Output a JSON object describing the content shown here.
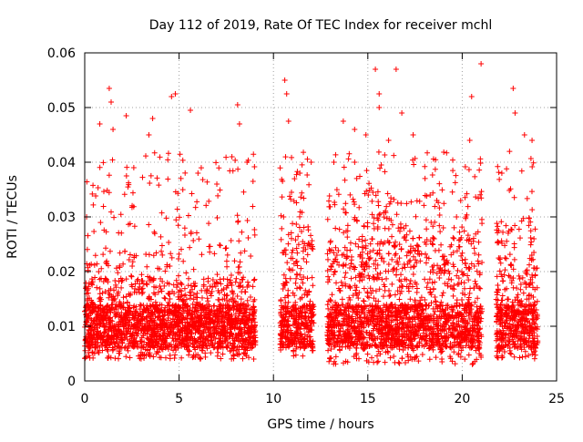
{
  "chart_data": {
    "type": "scatter",
    "title": "Day 112 of 2019, Rate Of TEC Index for receiver mchl",
    "xlabel": "GPS time / hours",
    "ylabel": "ROTI / TECUs",
    "xlim": [
      0,
      25
    ],
    "ylim": [
      0,
      0.06
    ],
    "xticks": [
      0,
      5,
      10,
      15,
      20,
      25
    ],
    "xtick_labels": [
      "0",
      "5",
      "10",
      "15",
      "20",
      "25"
    ],
    "yticks": [
      0,
      0.01,
      0.02,
      0.03,
      0.04,
      0.05,
      0.06
    ],
    "ytick_labels": [
      "0",
      "0.01",
      "0.02",
      "0.03",
      "0.04",
      "0.05",
      "0.06"
    ],
    "grid": true,
    "marker": "+",
    "color": "#ff0000",
    "series": [
      {
        "name": "ROTI",
        "segments": [
          {
            "x_start": 0.0,
            "x_end": 9.05,
            "typical_min": 0.004,
            "typical_max": 0.025
          },
          {
            "x_start": 10.35,
            "x_end": 12.15,
            "typical_min": 0.004,
            "typical_max": 0.035
          },
          {
            "x_start": 12.85,
            "x_end": 21.05,
            "typical_min": 0.003,
            "typical_max": 0.035
          },
          {
            "x_start": 21.8,
            "x_end": 24.0,
            "typical_min": 0.004,
            "typical_max": 0.03
          }
        ],
        "peaks": [
          {
            "x": 0.1,
            "y": 0.03
          },
          {
            "x": 0.8,
            "y": 0.047
          },
          {
            "x": 1.3,
            "y": 0.0535
          },
          {
            "x": 1.4,
            "y": 0.051
          },
          {
            "x": 1.5,
            "y": 0.046
          },
          {
            "x": 2.2,
            "y": 0.0485
          },
          {
            "x": 2.6,
            "y": 0.039
          },
          {
            "x": 3.4,
            "y": 0.045
          },
          {
            "x": 3.6,
            "y": 0.048
          },
          {
            "x": 4.6,
            "y": 0.052
          },
          {
            "x": 4.8,
            "y": 0.0525
          },
          {
            "x": 5.6,
            "y": 0.0495
          },
          {
            "x": 6.0,
            "y": 0.038
          },
          {
            "x": 7.0,
            "y": 0.036
          },
          {
            "x": 7.8,
            "y": 0.041
          },
          {
            "x": 8.1,
            "y": 0.0505
          },
          {
            "x": 8.2,
            "y": 0.047
          },
          {
            "x": 8.6,
            "y": 0.04
          },
          {
            "x": 10.6,
            "y": 0.055
          },
          {
            "x": 10.7,
            "y": 0.0525
          },
          {
            "x": 10.8,
            "y": 0.0475
          },
          {
            "x": 11.4,
            "y": 0.038
          },
          {
            "x": 12.0,
            "y": 0.04
          },
          {
            "x": 13.2,
            "y": 0.04
          },
          {
            "x": 13.7,
            "y": 0.0475
          },
          {
            "x": 14.3,
            "y": 0.046
          },
          {
            "x": 14.9,
            "y": 0.045
          },
          {
            "x": 15.4,
            "y": 0.057
          },
          {
            "x": 15.6,
            "y": 0.0525
          },
          {
            "x": 15.6,
            "y": 0.05
          },
          {
            "x": 16.1,
            "y": 0.044
          },
          {
            "x": 16.5,
            "y": 0.057
          },
          {
            "x": 16.8,
            "y": 0.049
          },
          {
            "x": 17.4,
            "y": 0.045
          },
          {
            "x": 18.3,
            "y": 0.034
          },
          {
            "x": 19.0,
            "y": 0.028
          },
          {
            "x": 19.7,
            "y": 0.03
          },
          {
            "x": 20.4,
            "y": 0.044
          },
          {
            "x": 20.5,
            "y": 0.052
          },
          {
            "x": 21.0,
            "y": 0.058
          },
          {
            "x": 22.1,
            "y": 0.038
          },
          {
            "x": 22.7,
            "y": 0.0535
          },
          {
            "x": 22.8,
            "y": 0.049
          },
          {
            "x": 23.3,
            "y": 0.045
          },
          {
            "x": 23.7,
            "y": 0.044
          }
        ]
      }
    ]
  }
}
